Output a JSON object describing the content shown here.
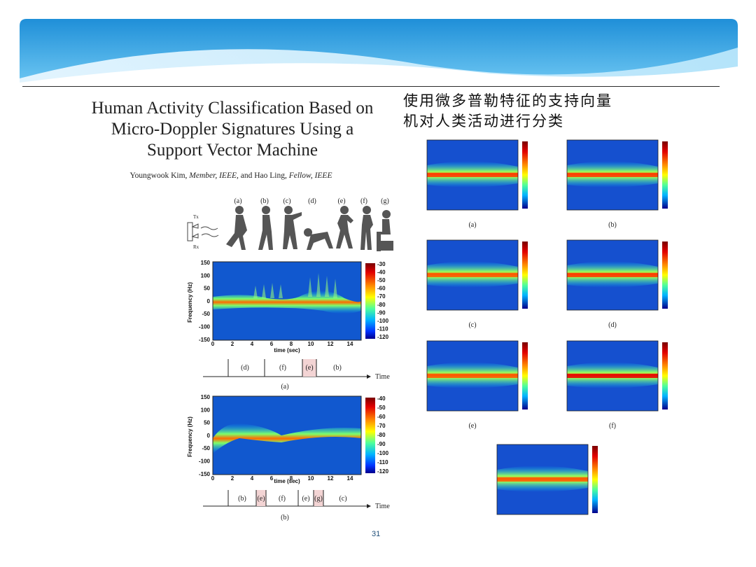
{
  "slide": {
    "page_number": "31"
  },
  "paper": {
    "title_line1": "Human Activity Classification Based on",
    "title_line2": "Micro-Doppler Signatures Using a",
    "title_line3": "Support Vector Machine",
    "author1": "Youngwook Kim,",
    "author1_role": "Member, IEEE,",
    "and": "and Hao Ling,",
    "author2_role": "Fellow, IEEE"
  },
  "zh_title": {
    "line1": "使用微多普勒特征的支持向量",
    "line2": "机对人类活动进行分类"
  },
  "activity_figure": {
    "labels": [
      "(a)",
      "(b)",
      "(c)",
      "(d)",
      "(e)",
      "(f)",
      "(g)"
    ],
    "tx": "Tx",
    "rx": "Rx"
  },
  "spectrogram_a": {
    "ylabel": "Frequency (Hz)",
    "xlabel": "time (sec)",
    "yticks": [
      "150",
      "100",
      "50",
      "0",
      "-50",
      "-100",
      "-150"
    ],
    "xticks": [
      "0",
      "2",
      "4",
      "6",
      "8",
      "10",
      "12",
      "14"
    ],
    "colorbar": [
      "-30",
      "-40",
      "-50",
      "-60",
      "-70",
      "-80",
      "-90",
      "-100",
      "-110",
      "-120"
    ],
    "timeline": [
      "(d)",
      "(f)",
      "(e)",
      "(b)"
    ],
    "timeline_axis": "Time",
    "caption": "(a)"
  },
  "spectrogram_b": {
    "ylabel": "Frequency (Hz)",
    "xlabel": "time (sec)",
    "yticks": [
      "150",
      "100",
      "50",
      "0",
      "-50",
      "-100",
      "-150"
    ],
    "xticks": [
      "0",
      "2",
      "4",
      "6",
      "8",
      "10",
      "12",
      "14"
    ],
    "colorbar": [
      "-40",
      "-50",
      "-60",
      "-70",
      "-80",
      "-90",
      "-100",
      "-110",
      "-120"
    ],
    "timeline": [
      "(b)",
      "(e)",
      "(f)",
      "(e)",
      "(g)",
      "(c)"
    ],
    "timeline_axis": "Time",
    "caption": "(b)"
  },
  "grid_captions": [
    "(a)",
    "(b)",
    "(c)",
    "(d)",
    "(e)",
    "(f)"
  ],
  "colors": {
    "banner_dark": "#1c8fd6",
    "banner_light": "#8dd3f5",
    "page_number": "#1e4e79"
  }
}
